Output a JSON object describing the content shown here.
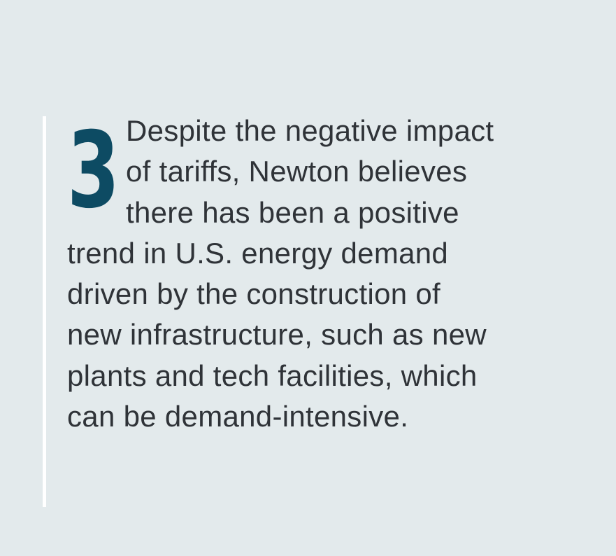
{
  "card": {
    "number": "3",
    "lines": [
      "Despite the negative impact",
      "of tariffs, Newton believes",
      "there has been a positive",
      "trend in U.S. energy demand",
      "driven by the construction of",
      "new infrastructure, such as new",
      "plants and tech facilities, which",
      "can be demand-intensive."
    ]
  },
  "colors": {
    "background": "#e3eaec",
    "accent": "#0d4b63",
    "text": "#2f3338",
    "rule": "#ffffff"
  }
}
